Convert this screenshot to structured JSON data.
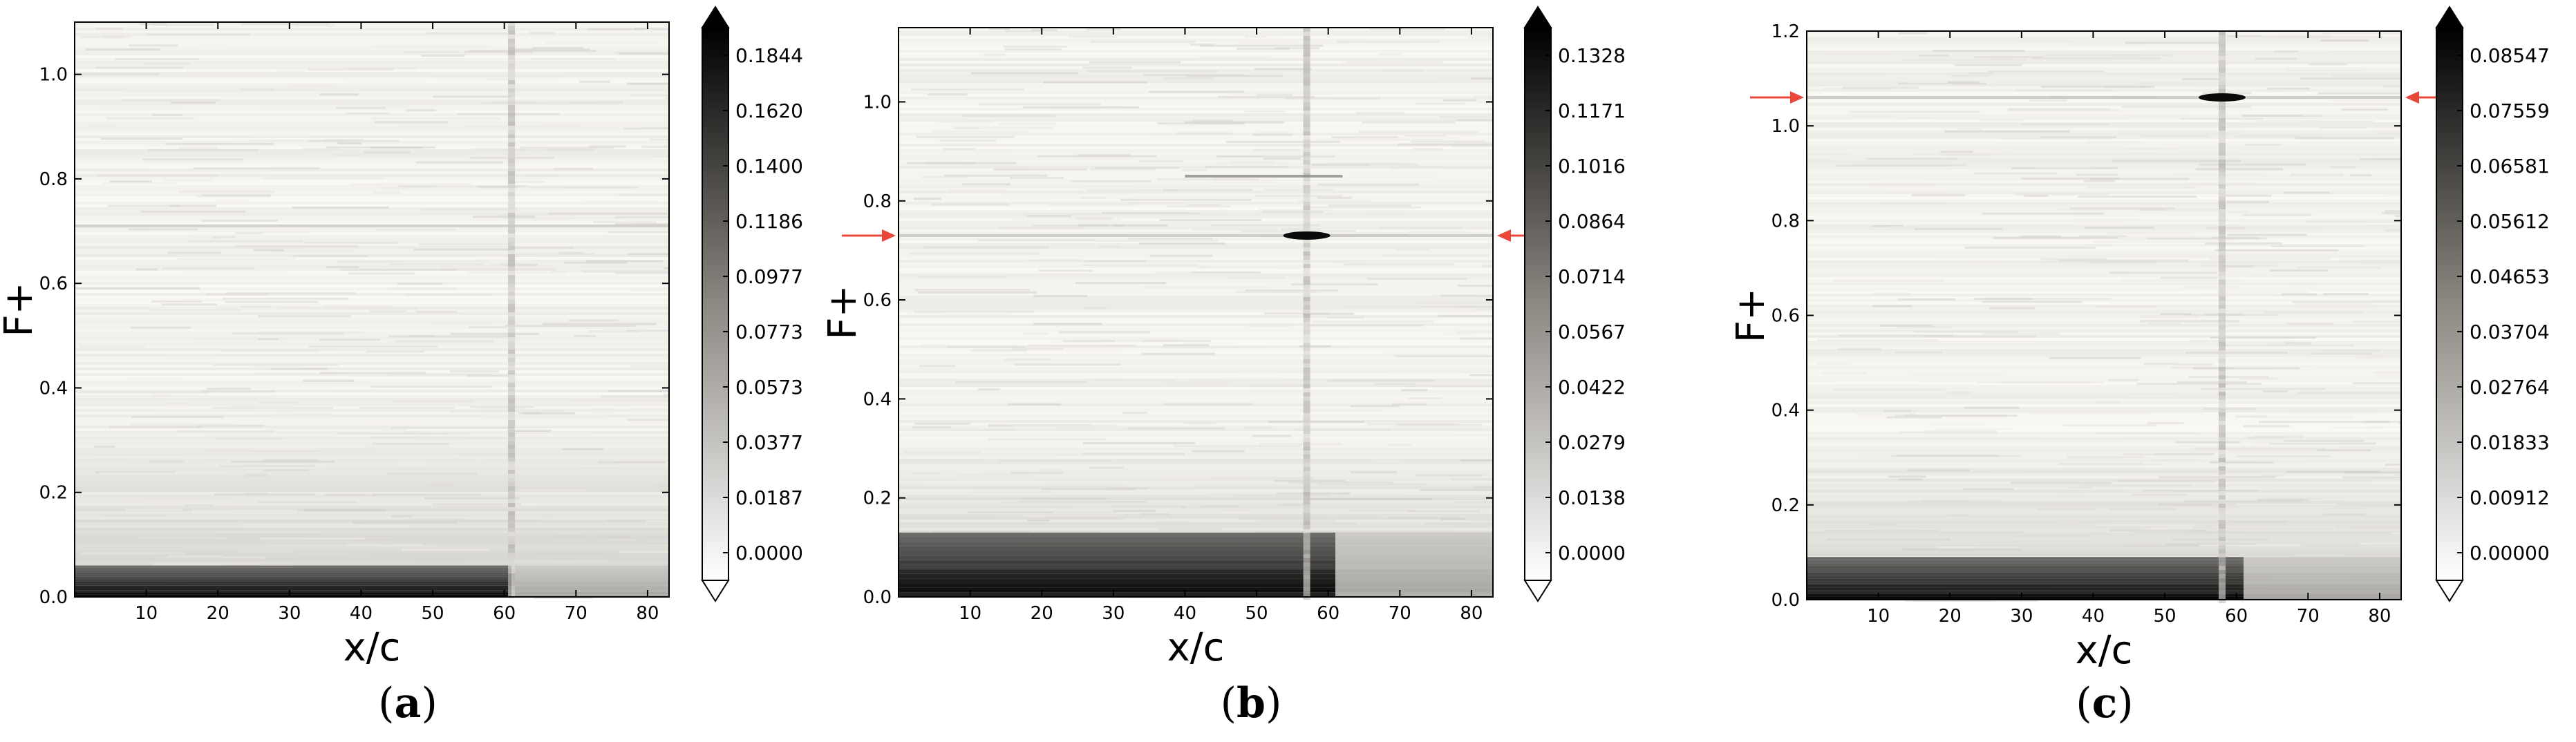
{
  "chart_data": [
    {
      "type": "heatmap",
      "caption_letter": "a",
      "xlabel": "x/c",
      "ylabel": "F+",
      "xlim": [
        0,
        83
      ],
      "ylim": [
        0,
        1.1
      ],
      "xticks": [
        10,
        20,
        30,
        40,
        50,
        60,
        70,
        80
      ],
      "yticks": [
        "0.0",
        "0.2",
        "0.4",
        "0.6",
        "0.8",
        "1.0"
      ],
      "colorbar": {
        "cmap": "gray_r",
        "min": 0.0,
        "max": 0.1844,
        "ticks": [
          "0.0000",
          "0.0187",
          "0.0377",
          "0.0573",
          "0.0773",
          "0.0977",
          "0.1186",
          "0.1400",
          "0.1620",
          "0.1844"
        ]
      },
      "features": {
        "dark_band_low_F": [
          0.0,
          0.06
        ],
        "vertical_streak_xc": 61,
        "faint_line_F": 0.71
      },
      "arrows_at_F": []
    },
    {
      "type": "heatmap",
      "caption_letter": "b",
      "xlabel": "x/c",
      "ylabel": "F+",
      "xlim": [
        0,
        83
      ],
      "ylim": [
        0,
        1.15
      ],
      "xticks": [
        10,
        20,
        30,
        40,
        50,
        60,
        70,
        80
      ],
      "yticks": [
        "0.0",
        "0.2",
        "0.4",
        "0.6",
        "0.8",
        "1.0"
      ],
      "colorbar": {
        "cmap": "gray_r",
        "min": 0.0,
        "max": 0.1328,
        "ticks": [
          "0.0000",
          "0.0138",
          "0.0279",
          "0.0422",
          "0.0567",
          "0.0714",
          "0.0864",
          "0.1016",
          "0.1171",
          "0.1328"
        ]
      },
      "features": {
        "dark_band_low_F": [
          0.0,
          0.13
        ],
        "vertical_streak_xc": 57,
        "bright_spot": {
          "xc": 57,
          "F": 0.73
        },
        "line_F": 0.85
      },
      "arrows_at_F": [
        0.73
      ]
    },
    {
      "type": "heatmap",
      "caption_letter": "c",
      "xlabel": "x/c",
      "ylabel": "F+",
      "xlim": [
        0,
        83
      ],
      "ylim": [
        0,
        1.2
      ],
      "xticks": [
        10,
        20,
        30,
        40,
        50,
        60,
        70,
        80
      ],
      "yticks": [
        "0.0",
        "0.2",
        "0.4",
        "0.6",
        "0.8",
        "1.0",
        "1.2"
      ],
      "colorbar": {
        "cmap": "gray_r",
        "min": 0.0,
        "max": 0.08547,
        "ticks": [
          "0.00000",
          "0.00912",
          "0.01833",
          "0.02764",
          "0.03704",
          "0.04653",
          "0.05612",
          "0.06581",
          "0.07559",
          "0.08547"
        ]
      },
      "features": {
        "dark_band_low_F": [
          0.0,
          0.09
        ],
        "vertical_streak_xc": 58,
        "bright_spot": {
          "xc": 58,
          "F": 1.06
        }
      },
      "arrows_at_F": [
        1.06
      ]
    }
  ]
}
